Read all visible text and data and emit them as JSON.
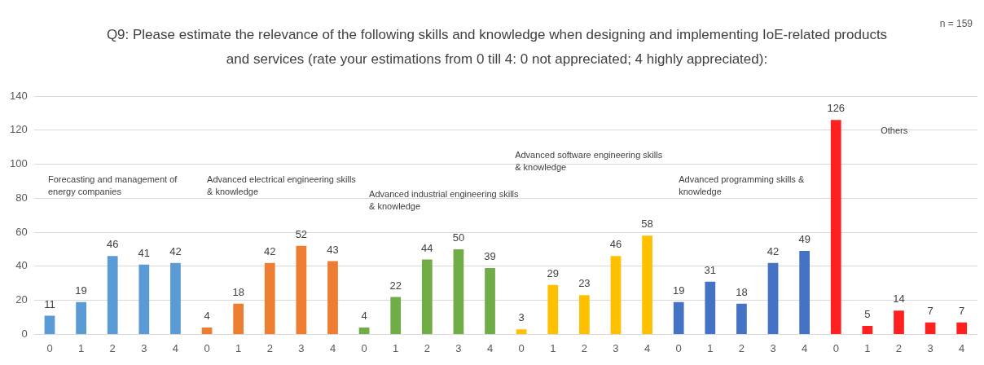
{
  "chart_data": {
    "type": "bar",
    "title": "Q9: Please estimate the relevance of the following skills and knowledge when designing and implementing IoE-related products and services (rate your estimations from 0 till 4: 0 not appreciated; 4 highly appreciated):",
    "categories": [
      "0",
      "1",
      "2",
      "3",
      "4",
      "0",
      "1",
      "2",
      "3",
      "4",
      "0",
      "1",
      "2",
      "3",
      "4",
      "0",
      "1",
      "2",
      "3",
      "4",
      "0",
      "1",
      "2",
      "3",
      "4",
      "0",
      "1",
      "2",
      "3",
      "4"
    ],
    "series": [
      {
        "values": [
          11,
          19,
          46,
          41,
          42,
          4,
          18,
          42,
          52,
          43,
          4,
          22,
          44,
          50,
          39,
          3,
          29,
          23,
          46,
          58,
          19,
          31,
          18,
          42,
          49,
          126,
          5,
          14,
          7,
          7
        ],
        "colors": [
          "#5b9bd5",
          "#5b9bd5",
          "#5b9bd5",
          "#5b9bd5",
          "#5b9bd5",
          "#ed7d31",
          "#ed7d31",
          "#ed7d31",
          "#ed7d31",
          "#ed7d31",
          "#70ad47",
          "#70ad47",
          "#70ad47",
          "#70ad47",
          "#70ad47",
          "#ffc000",
          "#ffc000",
          "#ffc000",
          "#ffc000",
          "#ffc000",
          "#4472c4",
          "#4472c4",
          "#4472c4",
          "#4472c4",
          "#4472c4",
          "#ff2020",
          "#ff2020",
          "#ff2020",
          "#ff2020",
          "#ff2020"
        ]
      }
    ],
    "ylim": [
      0,
      140
    ],
    "yticks": [
      0,
      20,
      40,
      60,
      80,
      100,
      120,
      140
    ],
    "grid": "y",
    "legend": false,
    "data_labels": true,
    "annotations": [
      "n = 159",
      "Forecasting and management of energy companies",
      "Advanced electrical engineering skills & knowledge",
      "Advanced industrial engineering skills & knowledge",
      "Advanced software engineering skills & knowledge",
      "Advanced programming skills & knowledge",
      "Others"
    ]
  }
}
